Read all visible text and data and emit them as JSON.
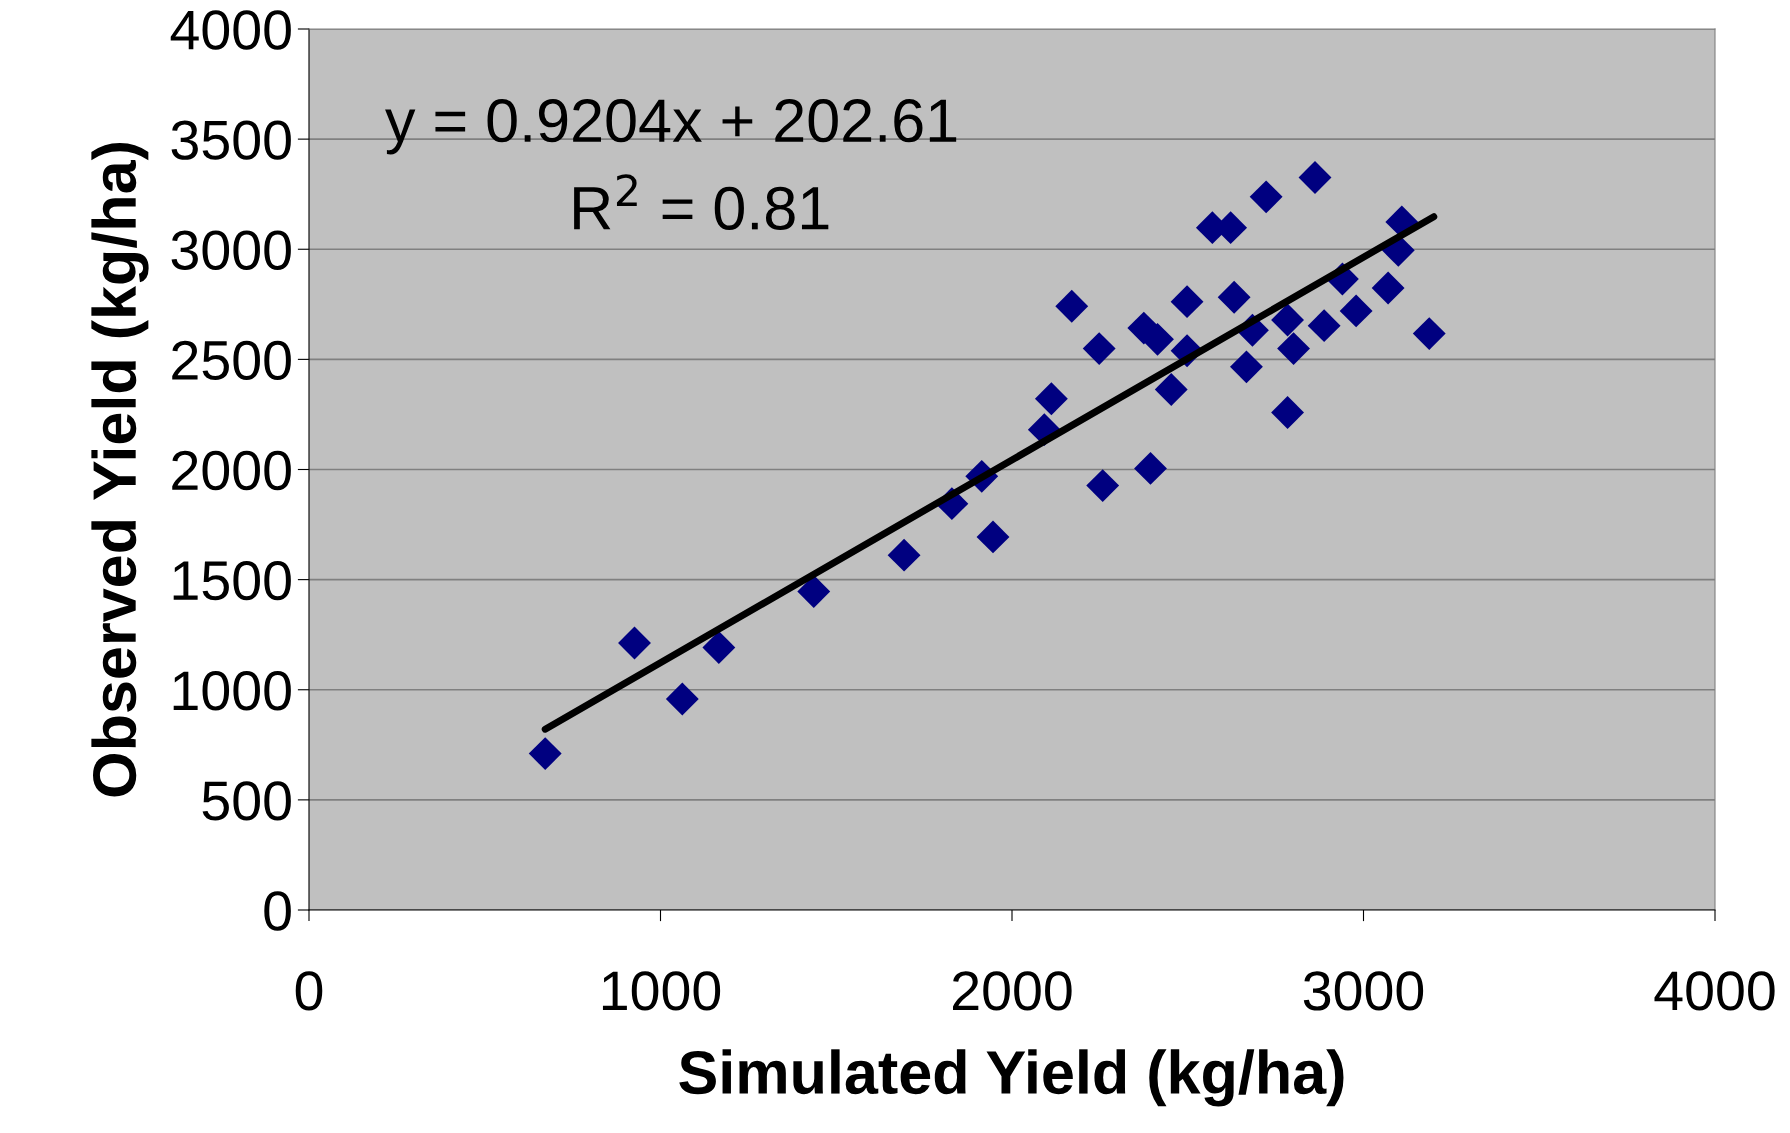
{
  "chart_data": {
    "type": "scatter",
    "xlabel": "Simulated Yield (kg/ha)",
    "ylabel": "Observed Yield (kg/ha)",
    "xlim": [
      0,
      4000
    ],
    "ylim": [
      0,
      4000
    ],
    "xticks": [
      0,
      1000,
      2000,
      3000,
      4000
    ],
    "yticks": [
      0,
      500,
      1000,
      1500,
      2000,
      2500,
      3000,
      3500,
      4000
    ],
    "grid": "y",
    "annotations": [
      "y = 0.9204x + 202.61",
      "R$^{2}$ = 0.81"
    ],
    "series": [
      {
        "marker": "diamond",
        "color": "#000080",
        "x": [
          672,
          926,
          1062,
          1166,
          1436,
          1693,
          1829,
          1914,
          1946,
          2092,
          2112,
          2170,
          2248,
          2258,
          2375,
          2394,
          2414,
          2453,
          2498,
          2498,
          2570,
          2622,
          2632,
          2667,
          2684,
          2723,
          2784,
          2784,
          2801,
          2862,
          2888,
          2940,
          2979,
          3070,
          3099,
          3109,
          3187
        ],
        "values": [
          710,
          1212,
          958,
          1192,
          1446,
          1611,
          1845,
          1969,
          1694,
          2181,
          2321,
          2741,
          2549,
          1927,
          2642,
          2005,
          2591,
          2363,
          2762,
          2539,
          3098,
          3098,
          2782,
          2466,
          2632,
          3238,
          2679,
          2259,
          2549,
          3326,
          2653,
          2865,
          2720,
          2824,
          2995,
          3124,
          2617
        ]
      },
      {
        "type": "line",
        "marker": "none",
        "color": "#000000",
        "x": [
          672,
          3200
        ],
        "values": [
          821,
          3148
        ]
      }
    ]
  }
}
